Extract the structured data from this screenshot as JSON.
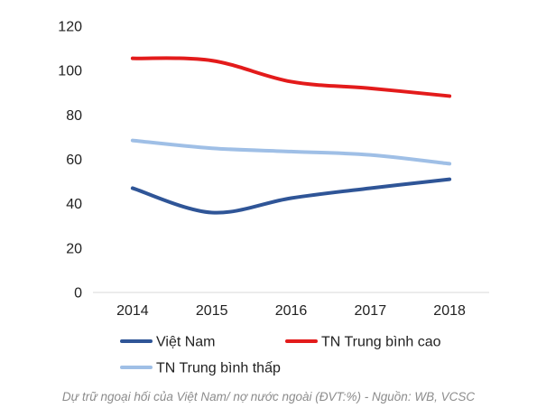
{
  "chart_data": {
    "type": "line",
    "x": [
      "2014",
      "2015",
      "2016",
      "2017",
      "2018"
    ],
    "ylim": [
      0,
      120
    ],
    "yticks": [
      0,
      20,
      40,
      60,
      80,
      100,
      120
    ],
    "grid": false,
    "legend_position": "bottom",
    "series": [
      {
        "name": "Việt Nam",
        "values": [
          47,
          36,
          42.5,
          47,
          51
        ],
        "color": "#2f5597"
      },
      {
        "name": "TN Trung bình cao",
        "values": [
          105.5,
          104.5,
          95,
          92,
          88.5
        ],
        "color": "#e31b1b"
      },
      {
        "name": "TN Trung bình thấp",
        "values": [
          68.5,
          65,
          63.5,
          62,
          58
        ],
        "color": "#9fbfe6"
      }
    ]
  },
  "caption": "Dự trữ ngoại hối của Việt Nam/ nợ nước ngoài (ĐVT:%) - Nguồn: WB, VCSC"
}
